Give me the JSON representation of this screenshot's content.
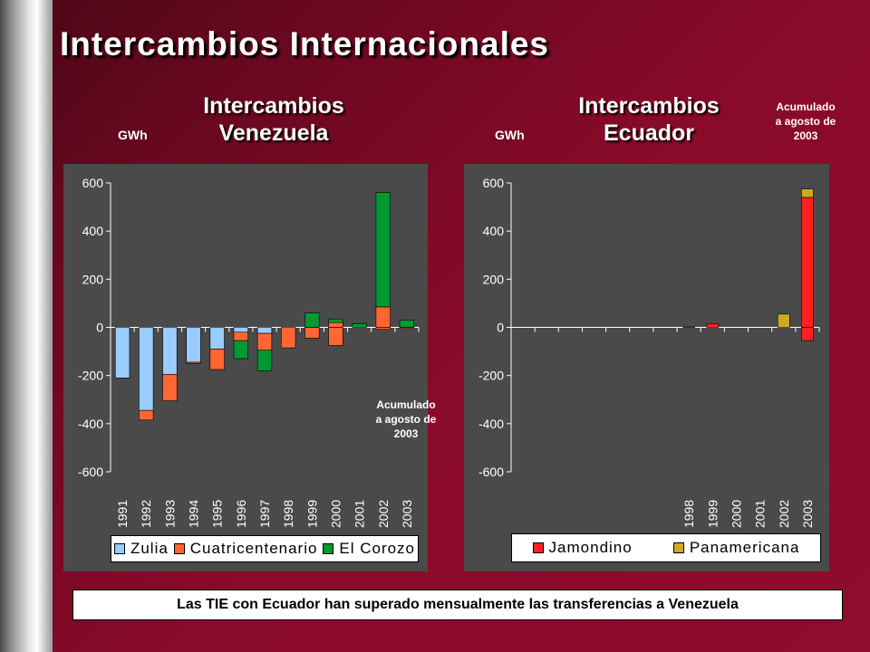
{
  "title": "Intercambios Internacionales",
  "colors": {
    "zulia": "#99ccff",
    "cuatricentenario": "#ff6633",
    "el_corozo": "#009933",
    "jamondino": "#ff2020",
    "panamericana": "#ccaa22",
    "plot_bg": "#4a4a4a"
  },
  "left": {
    "subtitle_line1": "Intercambios",
    "subtitle_line2": "Venezuela",
    "unit": "GWh",
    "note": [
      "Acumulado",
      "a agosto de",
      "2003"
    ]
  },
  "right": {
    "subtitle_line1": "Intercambios",
    "subtitle_line2": "Ecuador",
    "unit": "GWh",
    "note": [
      "Acumulado",
      "a agosto de",
      "2003"
    ]
  },
  "footer": "Las TIE con Ecuador han superado mensualmente las transferencias a Venezuela",
  "chart_data": [
    {
      "type": "bar",
      "stacked": true,
      "title": "Intercambios Venezuela",
      "ylabel": "GWh",
      "ylim": [
        -600,
        600
      ],
      "yticks": [
        -600,
        -400,
        -200,
        0,
        200,
        400,
        600
      ],
      "categories": [
        "1991",
        "1992",
        "1993",
        "1994",
        "1995",
        "1996",
        "1997",
        "1998",
        "1999",
        "2000",
        "2001",
        "2002",
        "2003"
      ],
      "series": [
        {
          "name": "Zulia",
          "values": [
            -210,
            -345,
            -195,
            -145,
            -90,
            -20,
            -25,
            0,
            0,
            0,
            0,
            0,
            0
          ]
        },
        {
          "name": "Cuatricentenario",
          "values": [
            0,
            -40,
            -110,
            -5,
            -85,
            -35,
            -70,
            -85,
            -45,
            -75,
            0,
            -8,
            -5
          ]
        },
        {
          "name": "El Corozo",
          "values": [
            0,
            0,
            0,
            0,
            0,
            -75,
            -85,
            0,
            0,
            0,
            0,
            0,
            0
          ]
        }
      ],
      "positive_series": [
        {
          "name": "Cuatricentenario",
          "values": [
            0,
            0,
            0,
            0,
            0,
            0,
            0,
            0,
            0,
            20,
            0,
            85,
            0
          ]
        },
        {
          "name": "El Corozo",
          "values": [
            0,
            0,
            0,
            0,
            0,
            0,
            0,
            0,
            60,
            15,
            15,
            475,
            30
          ]
        }
      ],
      "legend": [
        "Zulia",
        "Cuatricentenario",
        "El Corozo"
      ],
      "legend_position": "bottom"
    },
    {
      "type": "bar",
      "stacked": true,
      "title": "Intercambios Ecuador",
      "ylabel": "GWh",
      "ylim": [
        -600,
        600
      ],
      "yticks": [
        -600,
        -400,
        -200,
        0,
        200,
        400,
        600
      ],
      "categories": [
        "1998",
        "1999",
        "2000",
        "2001",
        "2002",
        "2003"
      ],
      "series": [
        {
          "name": "Jamondino",
          "values": [
            2,
            15,
            0,
            0,
            0,
            540
          ]
        },
        {
          "name": "Panamericana",
          "values": [
            0,
            0,
            0,
            0,
            55,
            35
          ]
        }
      ],
      "negative_series": [
        {
          "name": "Jamondino",
          "values": [
            0,
            0,
            0,
            0,
            0,
            -55
          ]
        }
      ],
      "legend": [
        "Jamondino",
        "Panamericana"
      ],
      "legend_position": "bottom"
    }
  ]
}
